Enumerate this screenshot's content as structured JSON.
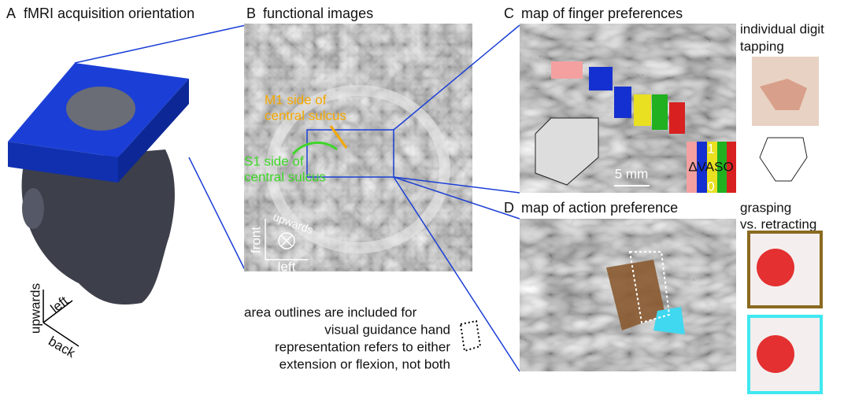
{
  "panel_a": {
    "label": "A",
    "title": "fMRI acquisition orientation",
    "axes": [
      "upwards",
      "left",
      "back"
    ]
  },
  "panel_b": {
    "label": "B",
    "title": "functional images",
    "m1_label": [
      "M1 side of",
      "central sulcus"
    ],
    "s1_label": [
      "S1 side of",
      "central sulcus"
    ],
    "compass": [
      "front",
      "upwards",
      "left"
    ]
  },
  "panel_c": {
    "label": "C",
    "title": "map of finger preferences",
    "scale": "5 mm",
    "colorbar": [
      "1",
      "ΔVASO",
      "0"
    ],
    "side_title": [
      "individual digit",
      "tapping"
    ]
  },
  "panel_d": {
    "label": "D",
    "title": "map of action preference",
    "side_title": [
      "grasping",
      "vs. retracting"
    ]
  },
  "note": [
    "area outlines are included for",
    "visual guidance  hand",
    "representation refers to either",
    "extension or flexion, not both"
  ]
}
